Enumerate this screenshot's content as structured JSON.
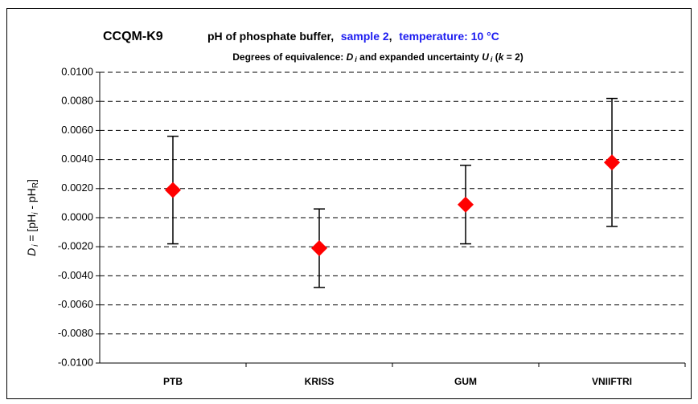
{
  "chart_data": {
    "type": "errorbar",
    "title": [
      "CCQM-K9",
      "pH of phosphate buffer,",
      "sample 2",
      ",",
      "temperature: 10 °C"
    ],
    "subtitle": [
      "Degrees of equivalence: ",
      "D",
      "i",
      " and expanded uncertainty ",
      "U",
      "i",
      " (",
      "k",
      " = 2)"
    ],
    "y_label": [
      "D",
      "i",
      " = [pH",
      "i",
      " - pH",
      "R",
      "]"
    ],
    "categories": [
      "PTB",
      "KRISS",
      "GUM",
      "VNIIFTRI"
    ],
    "values": [
      0.0019,
      -0.0021,
      0.0009,
      0.0038
    ],
    "errors": [
      0.0037,
      0.0027,
      0.0027,
      0.0044
    ],
    "color": "#ff0000",
    "ylim": [
      -0.01,
      0.01
    ],
    "yticks": [
      {
        "value": -0.01,
        "label": "-0.0100"
      },
      {
        "value": -0.008,
        "label": "-0.0080"
      },
      {
        "value": -0.006,
        "label": "-0.0060"
      },
      {
        "value": -0.004,
        "label": "-0.0040"
      },
      {
        "value": -0.002,
        "label": "-0.0020"
      },
      {
        "value": 0,
        "label": "0.0000"
      },
      {
        "value": 0.002,
        "label": "0.0020"
      },
      {
        "value": 0.004,
        "label": "0.0040"
      },
      {
        "value": 0.006,
        "label": "0.0060"
      },
      {
        "value": 0.008,
        "label": "0.0080"
      },
      {
        "value": 0.01,
        "label": "0.0100"
      }
    ],
    "grid": true
  }
}
